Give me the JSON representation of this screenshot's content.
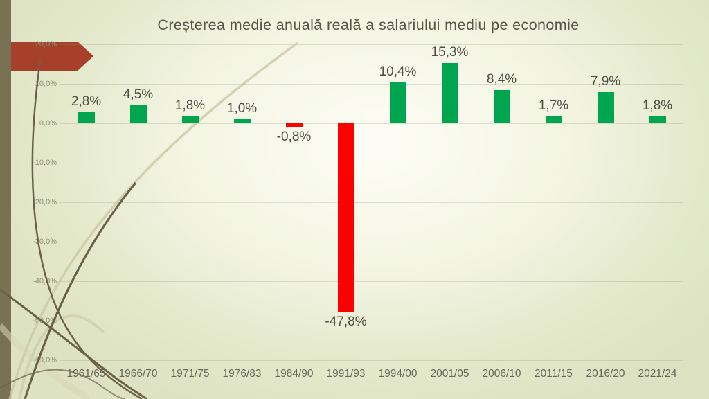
{
  "slide": {
    "title": "Creșterea medie anuală reală a salariului mediu pe economie"
  },
  "chart_data": {
    "type": "bar",
    "title": "Creșterea medie anuală reală a salariului mediu pe economie",
    "categories": [
      "1961/65",
      "1966/70",
      "1971/75",
      "1976/83",
      "1984/90",
      "1991/93",
      "1994/00",
      "2001/05",
      "2006/10",
      "2011/15",
      "2016/20",
      "2021/24"
    ],
    "values": [
      2.8,
      4.5,
      1.8,
      1.0,
      -0.8,
      -47.8,
      10.4,
      15.3,
      8.4,
      1.7,
      7.9,
      1.8
    ],
    "value_labels": [
      "2,8%",
      "4,5%",
      "1,8%",
      "1,0%",
      "-0,8%",
      "-47,8%",
      "10,4%",
      "15,3%",
      "8,4%",
      "1,7%",
      "7,9%",
      "1,8%"
    ],
    "xlabel": "",
    "ylabel": "",
    "ylim": [
      -60,
      20
    ],
    "ytick_interval": 10,
    "ytick_labels": [
      "20,0%",
      "10,0%",
      "0,0%",
      "-10,0%",
      "-20,0%",
      "-30,0%",
      "-40,0%",
      "-50,0%",
      "-60,0%"
    ],
    "grid": true,
    "legend": false,
    "positive_color": "#00A550",
    "negative_color": "#FF0000"
  },
  "theme": {
    "arrow_color": "#A6402B",
    "left_band_color": "#787154",
    "background_edge": "#DCE2C2",
    "background_center": "#FDFDF6"
  }
}
